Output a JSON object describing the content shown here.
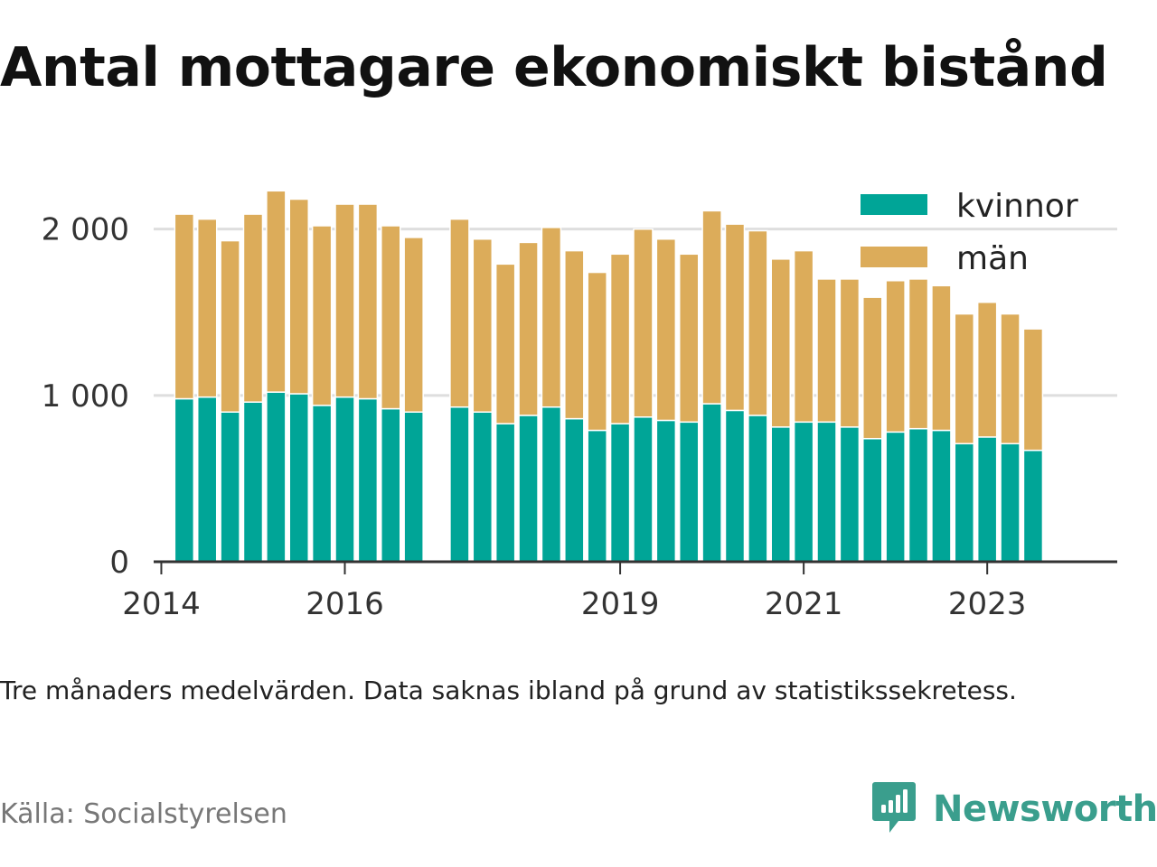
{
  "title": "Antal mottagare ekonomiskt bistånd",
  "note": "Tre månaders medelvärden. Data saknas ibland på grund av statistikssekretess.",
  "source": "Källa: Socialstyrelsen",
  "brand": {
    "name": "Newsworthy",
    "icon": "newsworthy-logo-icon",
    "color": "#3a9e8d"
  },
  "colors": {
    "kvinnor": "#00a597",
    "man": "#dcac5a",
    "grid": "#dedede",
    "axis": "#333333"
  },
  "chart_data": {
    "type": "bar",
    "stacked": true,
    "title": "Antal mottagare ekonomiskt bistånd",
    "xlabel": "",
    "ylabel": "",
    "ylim": [
      0,
      2400
    ],
    "xlim": [
      "2014-01",
      "2024-06"
    ],
    "yticks": [
      0,
      1000,
      2000
    ],
    "ytick_labels": [
      "0",
      "1 000",
      "2 000"
    ],
    "xticks": [
      "2014-01",
      "2016-01",
      "2019-01",
      "2021-01",
      "2023-01"
    ],
    "xtick_labels": [
      "2014",
      "2016",
      "2019",
      "2021",
      "2023"
    ],
    "grid": true,
    "legend": "top-right",
    "x": [
      "2014-04",
      "2014-07",
      "2014-10",
      "2015-01",
      "2015-04",
      "2015-07",
      "2015-10",
      "2016-01",
      "2016-04",
      "2016-07",
      "2016-10",
      "2017-01",
      "2017-04",
      "2017-07",
      "2017-10",
      "2018-01",
      "2018-04",
      "2018-07",
      "2018-10",
      "2019-01",
      "2019-04",
      "2019-07",
      "2019-10",
      "2020-01",
      "2020-04",
      "2020-07",
      "2020-10",
      "2021-01",
      "2021-04",
      "2021-07",
      "2021-10",
      "2022-01",
      "2022-04",
      "2022-07",
      "2022-10",
      "2023-01",
      "2023-04",
      "2023-07",
      "2023-10"
    ],
    "series": [
      {
        "name": "kvinnor",
        "color": "#00a597",
        "values": [
          980,
          990,
          900,
          960,
          1020,
          1010,
          940,
          990,
          980,
          920,
          900,
          null,
          930,
          900,
          830,
          880,
          930,
          860,
          790,
          830,
          870,
          850,
          840,
          950,
          910,
          880,
          810,
          840,
          840,
          810,
          740,
          780,
          800,
          790,
          710,
          750,
          710,
          670,
          null
        ]
      },
      {
        "name": "män",
        "color": "#dcac5a",
        "values": [
          1110,
          1070,
          1030,
          1130,
          1210,
          1170,
          1080,
          1160,
          1170,
          1100,
          1050,
          null,
          1130,
          1040,
          960,
          1040,
          1080,
          1010,
          950,
          1020,
          1130,
          1090,
          1010,
          1160,
          1120,
          1110,
          1010,
          1030,
          860,
          890,
          850,
          910,
          900,
          870,
          780,
          810,
          780,
          730,
          null
        ]
      }
    ]
  }
}
